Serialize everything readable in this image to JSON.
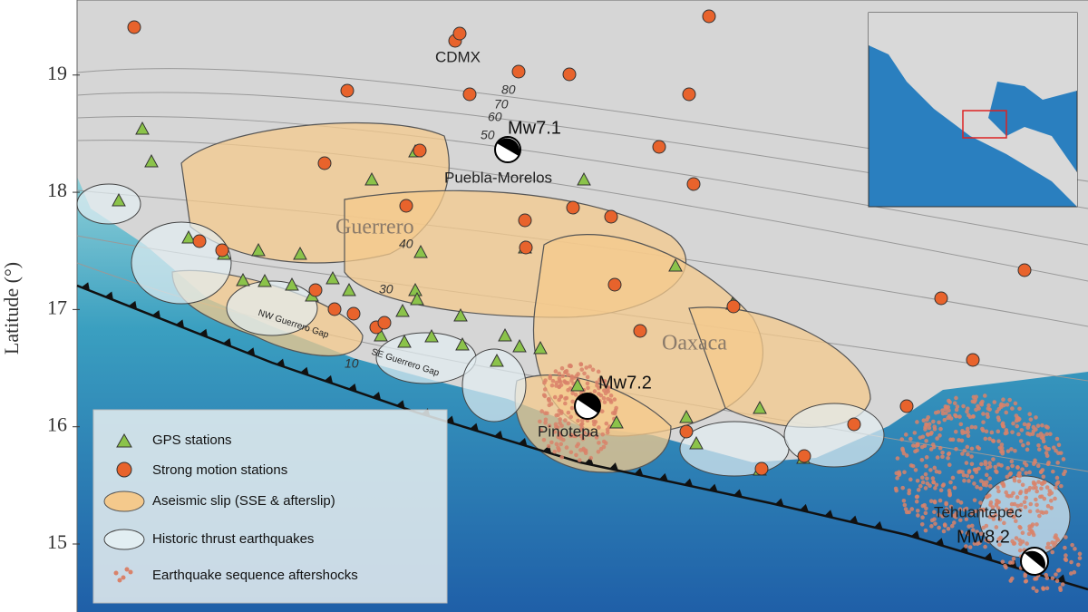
{
  "map": {
    "axis": {
      "label": "Latitude (°)",
      "ticks": [
        15,
        16,
        17,
        18,
        19
      ],
      "lim": [
        14.42,
        19.64
      ]
    },
    "places": {
      "cdmx": "CDMX",
      "puebla": "Puebla-Morelos",
      "guerrero": "Guerrero",
      "oaxaca": "Oaxaca",
      "pinotepa": "Pinotepa",
      "tehuantepec": "Tehuantepec",
      "nw_gap": "NW Guerrero Gap",
      "se_gap": "SE Guerrero Gap"
    },
    "events": {
      "mw71": "Mw7.1",
      "mw72": "Mw7.2",
      "mw82": "Mw8.2"
    },
    "contours": [
      "80",
      "70",
      "60",
      "50",
      "40",
      "30",
      "10"
    ],
    "legend": [
      "GPS stations",
      "Strong motion stations",
      "Aseismic slip (SSE & afterslip)",
      "Historic thrust earthquakes",
      "Earthquake sequence aftershocks"
    ]
  }
}
